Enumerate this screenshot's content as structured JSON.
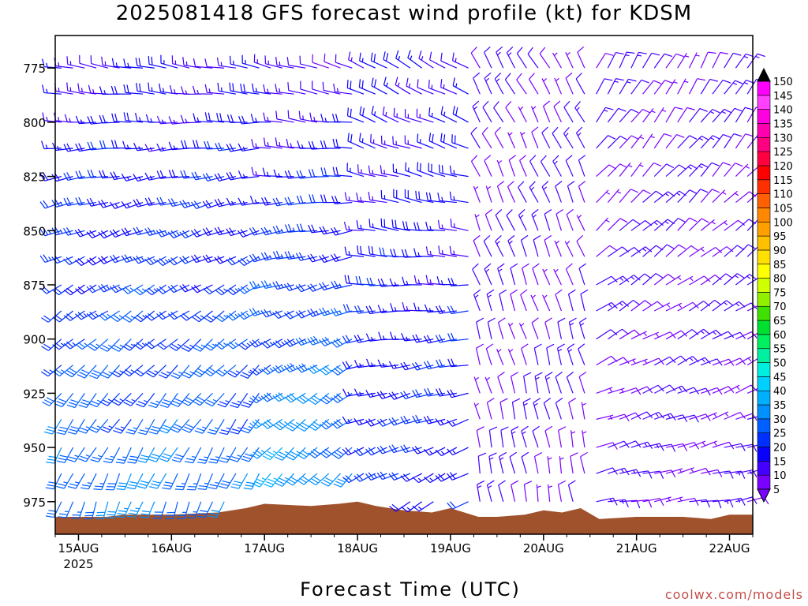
{
  "title": "2025081418 GFS forecast wind profile (kt) for KDSM",
  "credit": "coolwx.com/models",
  "chart_data": {
    "type": "wind-barb-time-height",
    "title": "2025081418 GFS forecast wind profile (kt) for KDSM",
    "xlabel": "Forecast Time (UTC)",
    "ylabel": "",
    "x_ticks": [
      {
        "label": "15AUG",
        "sublabel": "2025",
        "day": 15
      },
      {
        "label": "16AUG",
        "day": 16
      },
      {
        "label": "17AUG",
        "day": 17
      },
      {
        "label": "18AUG",
        "day": 18
      },
      {
        "label": "19AUG",
        "day": 19
      },
      {
        "label": "20AUG",
        "day": 20
      },
      {
        "label": "21AUG",
        "day": 21
      },
      {
        "label": "22AUG",
        "day": 22
      }
    ],
    "xlim_days": [
      14.75,
      22.25
    ],
    "y_ticks": [
      775,
      800,
      825,
      850,
      875,
      900,
      925,
      950,
      975
    ],
    "ylim_hpa": [
      760,
      990
    ],
    "colorbar": {
      "labels": [
        5,
        10,
        15,
        20,
        25,
        30,
        35,
        40,
        45,
        50,
        55,
        60,
        65,
        70,
        75,
        80,
        85,
        90,
        95,
        100,
        105,
        110,
        115,
        120,
        125,
        130,
        135,
        140,
        145,
        150
      ],
      "colors": [
        "#7a00ff",
        "#4400ff",
        "#0a00ff",
        "#0030ff",
        "#0060ff",
        "#0090ff",
        "#00b0ff",
        "#00d0ff",
        "#00f0e0",
        "#00f0a0",
        "#00f060",
        "#00e030",
        "#40e000",
        "#90f000",
        "#d0ff00",
        "#ffff00",
        "#ffe000",
        "#ffc000",
        "#ffa000",
        "#ff8800",
        "#ff6000",
        "#ff3000",
        "#ff0000",
        "#ff0040",
        "#ff0080",
        "#ff00b0",
        "#ff00e0",
        "#ff40ff",
        "#ff00ff",
        "#000000"
      ]
    },
    "terrain_color": "#a0522d",
    "terrain": [
      {
        "day": 14.75,
        "p": 982
      },
      {
        "day": 15.3,
        "p": 982
      },
      {
        "day": 15.5,
        "p": 981
      },
      {
        "day": 16.0,
        "p": 981
      },
      {
        "day": 16.5,
        "p": 980
      },
      {
        "day": 16.8,
        "p": 978
      },
      {
        "day": 17.0,
        "p": 976
      },
      {
        "day": 17.5,
        "p": 977
      },
      {
        "day": 17.8,
        "p": 976
      },
      {
        "day": 18.0,
        "p": 975
      },
      {
        "day": 18.2,
        "p": 977
      },
      {
        "day": 18.5,
        "p": 979
      },
      {
        "day": 18.8,
        "p": 980
      },
      {
        "day": 19.0,
        "p": 978
      },
      {
        "day": 19.3,
        "p": 982
      },
      {
        "day": 19.5,
        "p": 982
      },
      {
        "day": 19.8,
        "p": 981
      },
      {
        "day": 20.0,
        "p": 979
      },
      {
        "day": 20.2,
        "p": 980
      },
      {
        "day": 20.4,
        "p": 978
      },
      {
        "day": 20.6,
        "p": 983
      },
      {
        "day": 21.0,
        "p": 982
      },
      {
        "day": 21.5,
        "p": 982
      },
      {
        "day": 21.8,
        "p": 983
      },
      {
        "day": 22.0,
        "p": 981
      },
      {
        "day": 22.25,
        "p": 981
      }
    ],
    "barb_levels_hpa": [
      775,
      787,
      800,
      812,
      825,
      837,
      850,
      862,
      875,
      887,
      900,
      912,
      925,
      937,
      950,
      962,
      975
    ],
    "barb_regimes": [
      {
        "from_day": 14.8,
        "to_day": 17.0,
        "upper_dir_deg": 280,
        "upper_speed_kt": 15,
        "lower_dir_deg": 200,
        "lower_speed_kt": 30
      },
      {
        "from_day": 17.0,
        "to_day": 18.0,
        "upper_dir_deg": 285,
        "upper_speed_kt": 12,
        "lower_dir_deg": 220,
        "lower_speed_kt": 35
      },
      {
        "from_day": 18.0,
        "to_day": 19.2,
        "upper_dir_deg": 300,
        "upper_speed_kt": 15,
        "lower_dir_deg": 240,
        "lower_speed_kt": 20
      },
      {
        "from_day": 19.2,
        "to_day": 20.5,
        "upper_dir_deg": 330,
        "upper_speed_kt": 10,
        "lower_dir_deg": 350,
        "lower_speed_kt": 10
      },
      {
        "from_day": 20.5,
        "to_day": 22.25,
        "upper_dir_deg": 30,
        "upper_speed_kt": 10,
        "lower_dir_deg": 80,
        "lower_speed_kt": 10
      }
    ]
  }
}
